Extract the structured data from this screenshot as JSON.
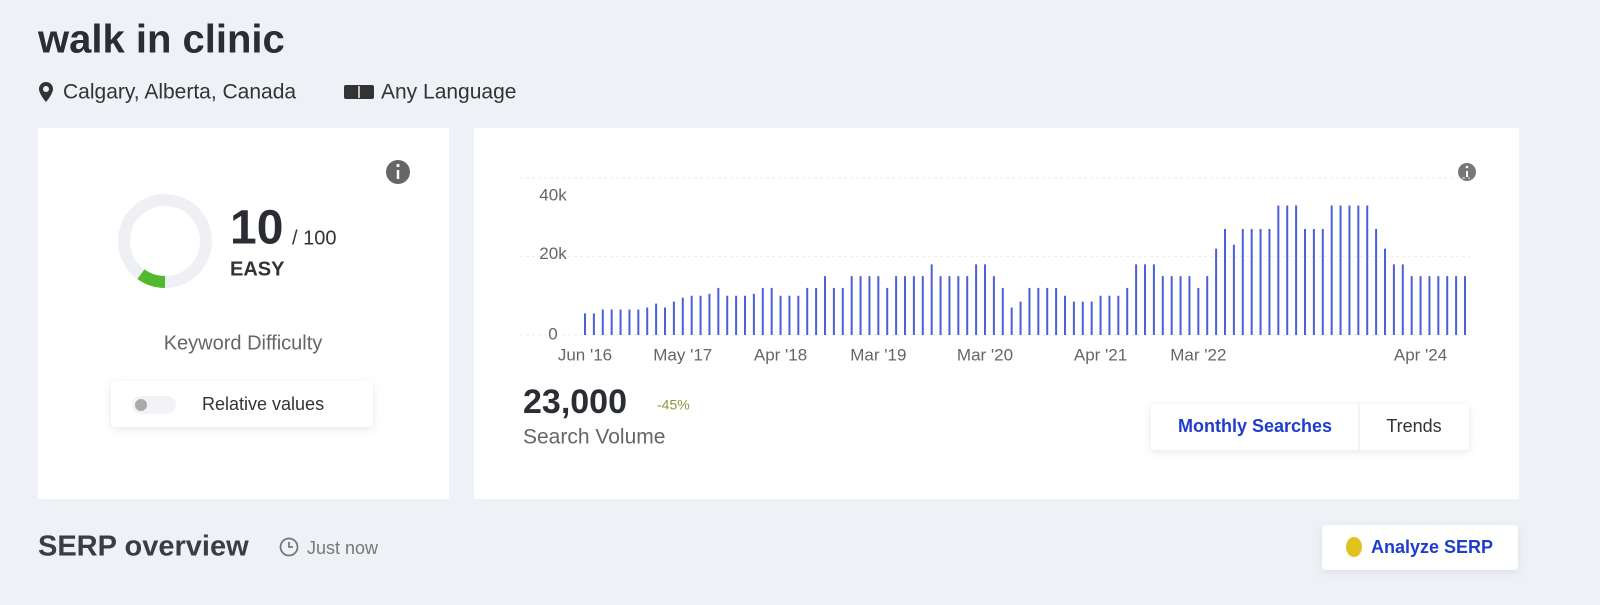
{
  "header": {
    "title": "walk in clinic",
    "location": "Calgary, Alberta, Canada",
    "language": "Any Language"
  },
  "difficulty": {
    "score": 10,
    "max": {
      "value": 100,
      "label": "/ 100"
    },
    "label": "EASY",
    "caption": "Keyword Difficulty",
    "toggle": "Relative values"
  },
  "chart_data": {
    "type": "bar",
    "color": "#4a5fd8",
    "categories": [
      "Jun '16",
      null,
      null,
      null,
      null,
      null,
      null,
      null,
      null,
      null,
      null,
      "May '17",
      null,
      null,
      null,
      null,
      null,
      null,
      null,
      null,
      null,
      null,
      "Apr '18",
      null,
      null,
      null,
      null,
      null,
      null,
      null,
      null,
      null,
      null,
      "Mar '19",
      null,
      null,
      null,
      null,
      null,
      null,
      null,
      null,
      null,
      null,
      null,
      "Mar '20",
      null,
      null,
      null,
      null,
      null,
      null,
      null,
      null,
      null,
      null,
      null,
      null,
      "Apr '21",
      null,
      null,
      null,
      null,
      null,
      null,
      null,
      null,
      null,
      null,
      "Mar '22",
      null,
      null,
      null,
      null,
      null,
      null,
      null,
      null,
      null,
      null,
      null,
      null,
      null,
      null,
      null,
      null,
      null,
      null,
      null,
      null,
      null,
      null,
      null,
      null,
      "Apr '24",
      null,
      null,
      null,
      null,
      null
    ],
    "values": [
      5500,
      5500,
      6500,
      6500,
      6500,
      6500,
      6500,
      7000,
      8000,
      7000,
      8500,
      9500,
      10000,
      10000,
      10500,
      12000,
      10000,
      10000,
      10000,
      10500,
      12000,
      12000,
      10000,
      10000,
      10000,
      12000,
      12000,
      15000,
      12000,
      12000,
      15000,
      15000,
      15000,
      15000,
      12000,
      15000,
      15000,
      15000,
      15000,
      18000,
      15000,
      15000,
      15000,
      15000,
      18000,
      18000,
      15000,
      12000,
      7000,
      8500,
      12000,
      12000,
      12000,
      12000,
      10000,
      8500,
      8500,
      8500,
      10000,
      10000,
      10000,
      12000,
      18000,
      18000,
      18000,
      15000,
      15000,
      15000,
      15000,
      12000,
      15000,
      22000,
      27000,
      23000,
      27000,
      27000,
      27000,
      27000,
      33000,
      33000,
      33000,
      27000,
      27000,
      27000,
      33000,
      33000,
      33000,
      33000,
      33000,
      27000,
      22000,
      18000,
      18000,
      15000,
      15000,
      15000,
      15000,
      15000,
      15000,
      15000
    ],
    "ylim": [
      0,
      40000
    ],
    "yticks": [
      0,
      {
        "value": 20000,
        "label": "20k"
      },
      {
        "value": 40000,
        "label": "40k"
      }
    ],
    "grid": true
  },
  "summary": {
    "volume": "23,000",
    "change": "-45%",
    "caption": "Search Volume"
  },
  "tabs": [
    "Monthly Searches",
    "Trends"
  ],
  "serp": {
    "title": "SERP overview",
    "time": "Just now",
    "button": "Analyze SERP"
  }
}
